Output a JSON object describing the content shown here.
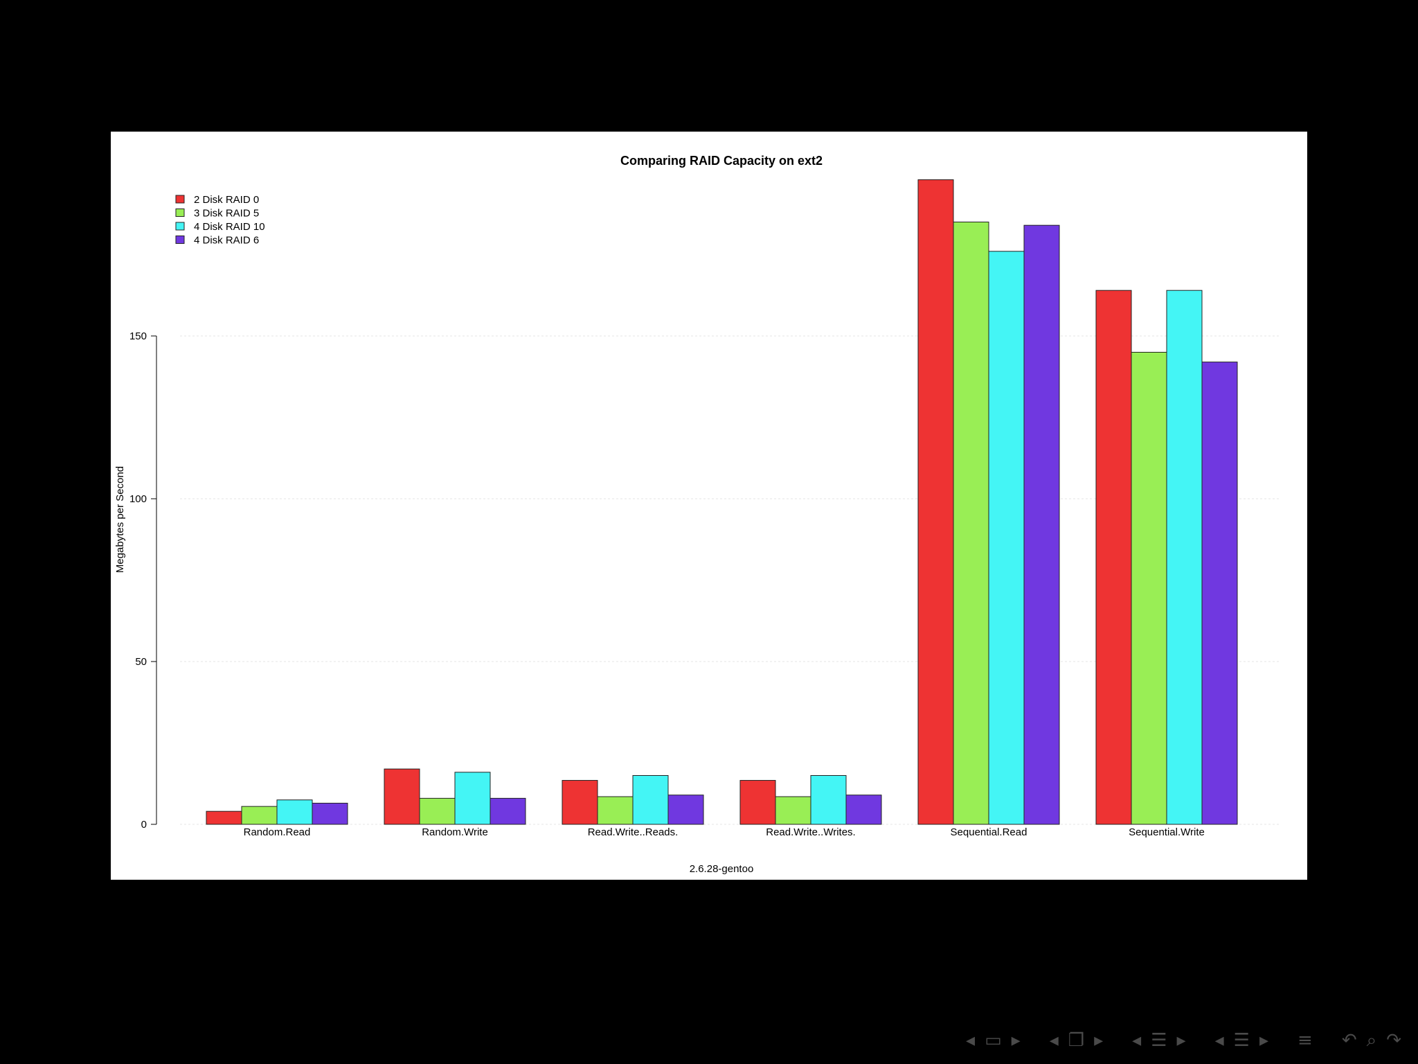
{
  "chart_data": {
    "type": "bar",
    "title": "Comparing RAID Capacity on ext2",
    "xlabel": "2.6.28-gentoo",
    "ylabel": "Megabytes per Second",
    "ylim": [
      0,
      200
    ],
    "yticks": [
      0,
      50,
      100,
      150
    ],
    "grid": true,
    "legend_position": "top-left",
    "categories": [
      "Random.Read",
      "Random.Write",
      "Read.Write..Reads.",
      "Read.Write..Writes.",
      "Sequential.Read",
      "Sequential.Write"
    ],
    "series": [
      {
        "name": "2 Disk RAID 0",
        "color": "#ee3333",
        "values": [
          4,
          17,
          13.5,
          13.5,
          198,
          164
        ]
      },
      {
        "name": "3 Disk RAID 5",
        "color": "#99ee55",
        "values": [
          5.5,
          8,
          8.5,
          8.5,
          185,
          145
        ]
      },
      {
        "name": "4 Disk RAID 10",
        "color": "#44f5f5",
        "values": [
          7.5,
          16,
          15,
          15,
          176,
          164
        ]
      },
      {
        "name": "4 Disk RAID 6",
        "color": "#7038e0",
        "values": [
          6.5,
          8,
          9,
          9,
          184,
          142
        ]
      }
    ]
  },
  "navigation": {
    "icons": [
      "arrow-left-icon",
      "frame-icon",
      "arrow-right-icon",
      "arrow-left-icon",
      "subsection-icon",
      "arrow-right-icon",
      "arrow-left-icon",
      "section-icon",
      "arrow-right-icon",
      "arrow-left-icon",
      "section-icon",
      "arrow-right-icon",
      "outline-icon",
      "back-icon",
      "search-icon",
      "forward-icon"
    ]
  }
}
